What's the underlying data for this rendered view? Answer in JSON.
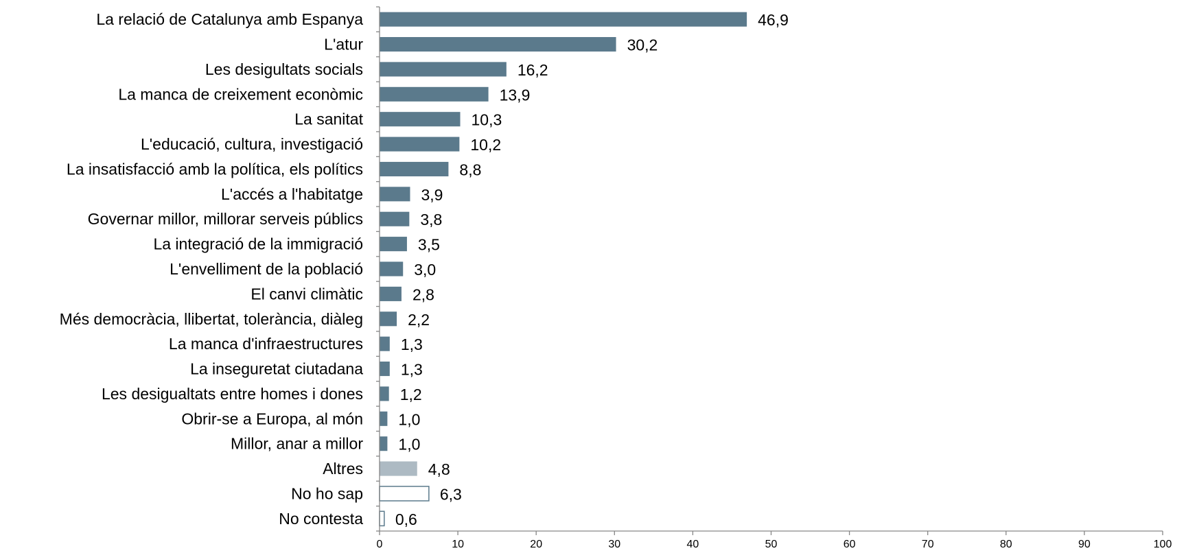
{
  "chart_data": {
    "type": "bar",
    "orientation": "horizontal",
    "title": "",
    "xlabel": "",
    "ylabel": "",
    "xlim": [
      0,
      100
    ],
    "x_ticks": [
      0,
      10,
      20,
      30,
      40,
      50,
      60,
      70,
      80,
      90,
      100
    ],
    "grid": false,
    "legend": "none",
    "colors": {
      "main": "#5b7a8c",
      "other": "#adbac3",
      "outline": "#5b7a8c",
      "empty_fill": "#ffffff"
    },
    "categories": [
      "La relació de Catalunya amb Espanya",
      "L'atur",
      "Les desigultats socials",
      "La manca de creixement econòmic",
      "La sanitat",
      "L'educació, cultura, investigació",
      "La insatisfacció amb la política, els polítics",
      "L'accés a l'habitatge",
      "Governar millor, millorar serveis públics",
      "La integració de la immigració",
      "L'envelliment de la població",
      "El canvi climàtic",
      "Més democràcia, llibertat, tolerància, diàleg",
      "La manca d'infraestructures",
      "La inseguretat ciutadana",
      "Les desigualtats entre homes i dones",
      "Obrir-se a Europa, al món",
      "Millor, anar a millor",
      "Altres",
      "No ho sap",
      "No contesta"
    ],
    "values": [
      46.9,
      30.2,
      16.2,
      13.9,
      10.3,
      10.2,
      8.8,
      3.9,
      3.8,
      3.5,
      3.0,
      2.8,
      2.2,
      1.3,
      1.3,
      1.2,
      1.0,
      1.0,
      4.8,
      6.3,
      0.6
    ],
    "value_labels": [
      "46,9",
      "30,2",
      "16,2",
      "13,9",
      "10,3",
      "10,2",
      "8,8",
      "3,9",
      "3,8",
      "3,5",
      "3,0",
      "2,8",
      "2,2",
      "1,3",
      "1,3",
      "1,2",
      "1,0",
      "1,0",
      "4,8",
      "6,3",
      "0,6"
    ],
    "bar_styles": [
      "main",
      "main",
      "main",
      "main",
      "main",
      "main",
      "main",
      "main",
      "main",
      "main",
      "main",
      "main",
      "main",
      "main",
      "main",
      "main",
      "main",
      "main",
      "other",
      "outline",
      "outline"
    ]
  }
}
